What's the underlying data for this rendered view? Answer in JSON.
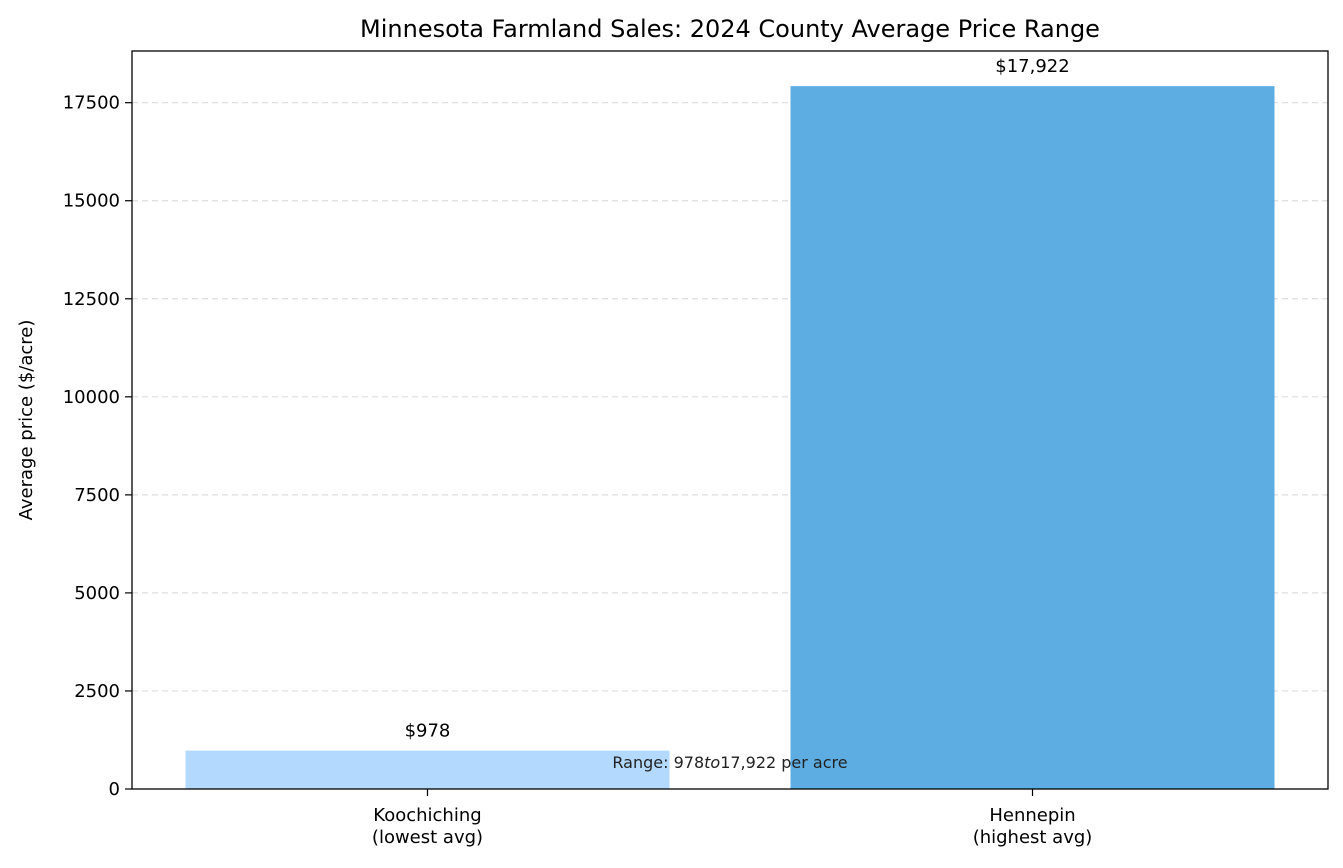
{
  "chart_data": {
    "type": "bar",
    "title": "Minnesota Farmland Sales: 2024 County Average Price Range",
    "xlabel": "",
    "ylabel": "Average price ($/acre)",
    "categories": [
      "Koochiching\n(lowest avg)",
      "Hennepin\n(highest avg)"
    ],
    "values": [
      978,
      17922
    ],
    "data_labels": [
      "$978",
      "$17,922"
    ],
    "colors": [
      "#b3d9ff",
      "#5dade2"
    ],
    "ylim": [
      0,
      18818
    ],
    "yticks": [
      0,
      2500,
      5000,
      7500,
      10000,
      12500,
      15000,
      17500
    ],
    "grid": "y-dashed",
    "annotation": {
      "prefix": "Range: 978",
      "italic": "to",
      "suffix": "17,922 per acre"
    }
  }
}
